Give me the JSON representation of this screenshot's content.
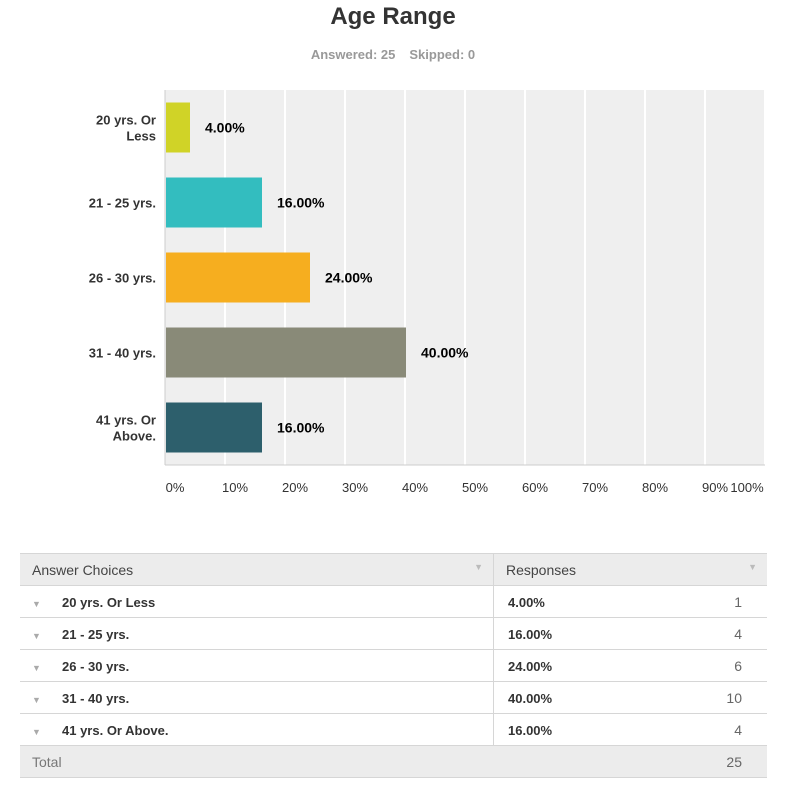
{
  "header": {
    "title": "Age Range",
    "answered": "Answered: 25",
    "skipped": "Skipped: 0"
  },
  "chart_data": {
    "type": "bar",
    "orientation": "horizontal",
    "title": "Age Range",
    "categories": [
      [
        "20 yrs. Or",
        "Less"
      ],
      [
        "21 - 25 yrs."
      ],
      [
        "26 - 30 yrs."
      ],
      [
        "31 - 40 yrs."
      ],
      [
        "41 yrs. Or",
        "Above."
      ]
    ],
    "values": [
      4,
      16,
      24,
      40,
      16
    ],
    "data_labels": [
      "4.00%",
      "16.00%",
      "24.00%",
      "40.00%",
      "16.00%"
    ],
    "colors": [
      "#d0d327",
      "#33bdbf",
      "#f6ae1f",
      "#898a78",
      "#2d5f6c"
    ],
    "xlim": [
      0,
      100
    ],
    "x_ticks": [
      "0%",
      "10%",
      "20%",
      "30%",
      "40%",
      "50%",
      "60%",
      "70%",
      "80%",
      "90%",
      "100%"
    ],
    "grid": true
  },
  "table": {
    "headers": [
      "Answer Choices",
      "Responses"
    ],
    "rows": [
      {
        "choice": "20 yrs. Or Less",
        "percent": "4.00%",
        "count": "1"
      },
      {
        "choice": "21 - 25 yrs.",
        "percent": "16.00%",
        "count": "4"
      },
      {
        "choice": "26 - 30 yrs.",
        "percent": "24.00%",
        "count": "6"
      },
      {
        "choice": "31 - 40 yrs.",
        "percent": "40.00%",
        "count": "10"
      },
      {
        "choice": "41 yrs. Or Above.",
        "percent": "16.00%",
        "count": "4"
      }
    ],
    "total_label": "Total",
    "total": "25"
  }
}
